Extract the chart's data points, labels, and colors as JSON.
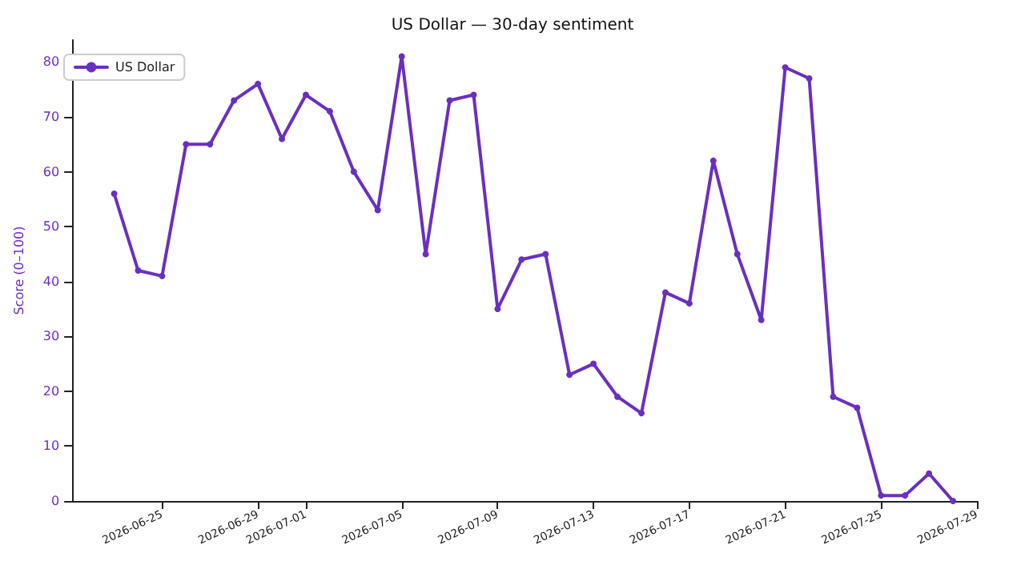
{
  "chart_data": {
    "type": "line",
    "title": "US Dollar — 30-day sentiment",
    "ylabel": "Score (0–100)",
    "x": [
      "2026-06-23",
      "2026-06-24",
      "2026-06-25",
      "2026-06-26",
      "2026-06-27",
      "2026-06-28",
      "2026-06-29",
      "2026-06-30",
      "2026-07-01",
      "2026-07-02",
      "2026-07-03",
      "2026-07-04",
      "2026-07-05",
      "2026-07-06",
      "2026-07-07",
      "2026-07-08",
      "2026-07-09",
      "2026-07-10",
      "2026-07-11",
      "2026-07-12",
      "2026-07-13",
      "2026-07-14",
      "2026-07-15",
      "2026-07-16",
      "2026-07-17",
      "2026-07-18",
      "2026-07-19",
      "2026-07-20",
      "2026-07-21",
      "2026-07-22",
      "2026-07-23",
      "2026-07-24",
      "2026-07-25",
      "2026-07-26",
      "2026-07-27",
      "2026-07-28"
    ],
    "series": [
      {
        "name": "US Dollar",
        "color": "#6a2fc0",
        "values": [
          56,
          42,
          41,
          65,
          65,
          73,
          76,
          66,
          74,
          71,
          60,
          53,
          81,
          45,
          73,
          74,
          35,
          44,
          45,
          23,
          25,
          19,
          16,
          38,
          36,
          62,
          45,
          33,
          79,
          77,
          19,
          17,
          1,
          1,
          5,
          0
        ]
      }
    ],
    "xlim": [
      "2026-06-21T06:00",
      "2026-07-29"
    ],
    "xticks": [
      "2026-06-25",
      "2026-06-29",
      "2026-07-01",
      "2026-07-05",
      "2026-07-09",
      "2026-07-13",
      "2026-07-17",
      "2026-07-21",
      "2026-07-25",
      "2026-07-29"
    ],
    "ylim": [
      0,
      84
    ],
    "yticks": [
      0,
      10,
      20,
      30,
      40,
      50,
      60,
      70,
      80
    ],
    "grid": false,
    "legend": "top left",
    "marker": "circle",
    "line_style": "solid"
  }
}
